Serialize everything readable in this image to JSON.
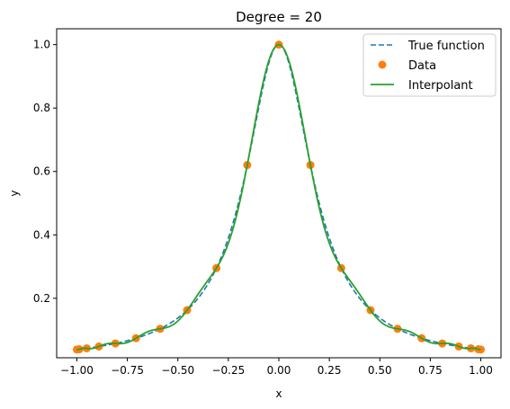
{
  "chart_data": {
    "type": "line",
    "title": "Degree = 20",
    "xlabel": "x",
    "ylabel": "y",
    "xlim": [
      -1.1,
      1.1
    ],
    "ylim": [
      0.0125,
      1.05
    ],
    "xticks": [
      -1.0,
      -0.75,
      -0.5,
      -0.25,
      0.0,
      0.25,
      0.5,
      0.75,
      1.0
    ],
    "xtick_labels": [
      "−1.00",
      "−0.75",
      "−0.50",
      "−0.25",
      "0.00",
      "0.25",
      "0.50",
      "0.75",
      "1.00"
    ],
    "yticks": [
      0.2,
      0.4,
      0.6,
      0.8,
      1.0
    ],
    "ytick_labels": [
      "0.2",
      "0.4",
      "0.6",
      "0.8",
      "1.0"
    ],
    "grid": false,
    "legend_position": "top-right",
    "series": [
      {
        "name": "True function",
        "kind": "line",
        "style": "dashed",
        "color": "#1f77b4",
        "function": "1/(1+25x^2)",
        "x_range": [
          -1.0,
          1.0
        ]
      },
      {
        "name": "Data",
        "kind": "scatter",
        "color": "#ff7f0e",
        "x": [
          -1.0,
          -0.9877,
          -0.9511,
          -0.891,
          -0.809,
          -0.7071,
          -0.5878,
          -0.454,
          -0.309,
          -0.1564,
          0.0,
          0.1564,
          0.309,
          0.454,
          0.5878,
          0.7071,
          0.809,
          0.891,
          0.9511,
          0.9877,
          1.0
        ],
        "y": [
          0.0385,
          0.0394,
          0.0423,
          0.048,
          0.0576,
          0.0741,
          0.1038,
          0.1626,
          0.2952,
          0.6204,
          1.0,
          0.6204,
          0.2952,
          0.1626,
          0.1038,
          0.0741,
          0.0576,
          0.048,
          0.0423,
          0.0394,
          0.0385
        ]
      },
      {
        "name": "Interpolant",
        "kind": "line",
        "style": "solid",
        "color": "#2ca02c",
        "function": "degree-20 polynomial through the data points",
        "x_range": [
          -1.0,
          1.0
        ]
      }
    ]
  }
}
